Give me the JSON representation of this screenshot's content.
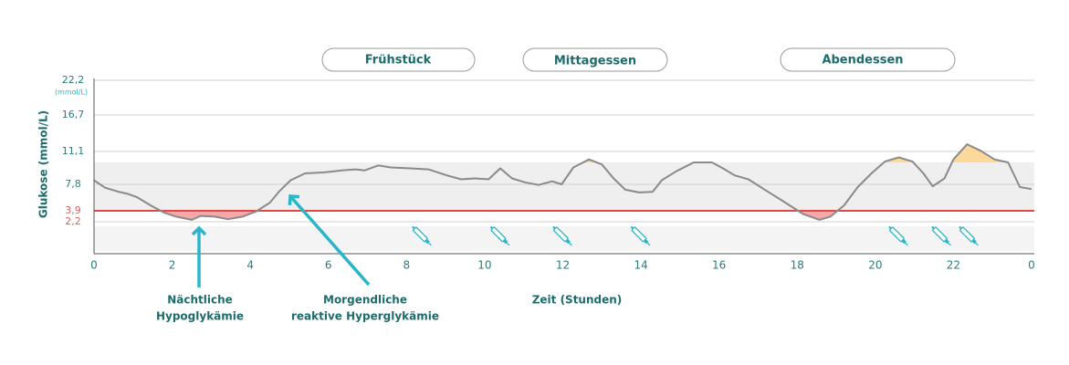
{
  "chart_data": {
    "type": "line",
    "y_label": "Glukose (mmol/L)",
    "y_unit": "(mmol/L)",
    "x_label": "Zeit (Stunden)",
    "xlim": [
      0,
      24
    ],
    "xticks": [
      0,
      2,
      4,
      6,
      8,
      10,
      12,
      14,
      16,
      18,
      20,
      22,
      {
        "value": 24,
        "label": "0"
      }
    ],
    "ylim": [
      0,
      22.2
    ],
    "yticks": [
      {
        "value": 2.2,
        "label": "2,2"
      },
      {
        "value": 3.9,
        "label": "3,9"
      },
      {
        "value": 7.8,
        "label": "7,8"
      },
      {
        "value": 11.1,
        "label": "11,1"
      },
      {
        "value": 16.7,
        "label": "16,7"
      },
      {
        "value": 22.2,
        "label": "22,2"
      }
    ],
    "grid": true,
    "target_range": [
      3.9,
      10
    ],
    "hypo_threshold": 3.9,
    "color": "#8a8a8a",
    "x": [
      0,
      0.28,
      0.63,
      0.86,
      1.1,
      1.45,
      1.8,
      2.1,
      2.5,
      2.73,
      3.08,
      3.43,
      3.8,
      4.15,
      4.5,
      4.73,
      5.03,
      5.4,
      5.9,
      6.35,
      6.7,
      6.93,
      7.28,
      7.6,
      8.1,
      8.56,
      9.03,
      9.4,
      9.75,
      10.1,
      10.4,
      10.7,
      11.03,
      11.38,
      11.73,
      11.97,
      12.27,
      12.67,
      13.0,
      13.3,
      13.6,
      13.95,
      14.3,
      14.53,
      14.9,
      15.35,
      15.82,
      16.1,
      16.4,
      16.75,
      17.2,
      17.7,
      18.15,
      18.57,
      18.85,
      19.2,
      19.55,
      19.9,
      20.25,
      20.6,
      20.95,
      21.23,
      21.47,
      21.77,
      22.0,
      22.35,
      22.7,
      23.05,
      23.4,
      23.7,
      24
    ],
    "values": [
      8.2,
      7.3,
      6.7,
      6.4,
      5.9,
      4.7,
      3.6,
      3.0,
      2.5,
      3.1,
      3.0,
      2.6,
      3.0,
      3.8,
      5.1,
      6.7,
      8.2,
      8.9,
      9.0,
      9.2,
      9.3,
      9.2,
      9.7,
      9.5,
      9.4,
      9.3,
      8.7,
      8.3,
      8.4,
      8.3,
      9.4,
      8.4,
      8.0,
      7.7,
      8.1,
      7.8,
      9.5,
      10.3,
      9.8,
      8.4,
      7.0,
      6.6,
      6.7,
      8.2,
      9.1,
      10.0,
      10.0,
      9.4,
      8.7,
      8.3,
      6.9,
      5.1,
      3.4,
      2.5,
      3.0,
      4.7,
      7.4,
      8.9,
      10.1,
      10.5,
      10.1,
      8.9,
      7.5,
      8.4,
      10.3,
      12.2,
      11.2,
      10.3,
      10.0,
      7.4,
      7.1
    ],
    "injections": [
      8.4,
      10.4,
      12.0,
      14.0,
      20.6,
      21.7,
      22.4
    ],
    "meals": [
      "Frühstück",
      "Mittagessen",
      "Abendessen"
    ],
    "annotations": [
      [
        "Nächtliche",
        "Hypoglykämie"
      ],
      [
        "Morgendliche",
        "reaktive Hyperglykämie"
      ]
    ]
  }
}
